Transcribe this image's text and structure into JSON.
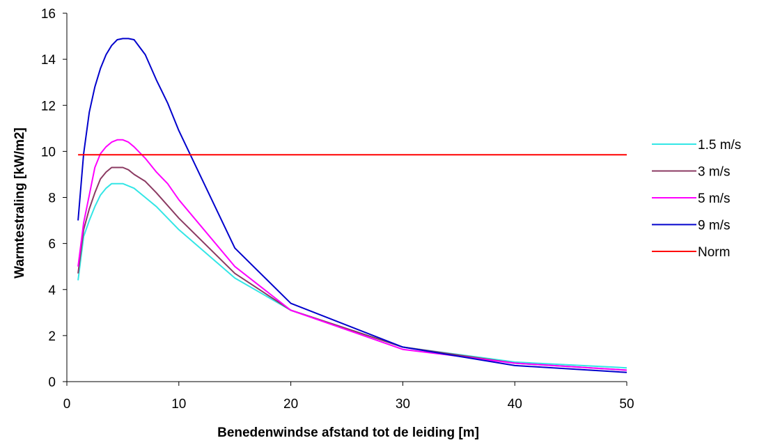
{
  "chart_data": {
    "type": "line",
    "title": "",
    "xlabel": "Benedenwindse afstand tot de leiding [m]",
    "ylabel": "Warmtestraling [kW/m2]",
    "xlim": [
      0,
      50
    ],
    "ylim": [
      0,
      16
    ],
    "x_ticks": [
      "0",
      "10",
      "20",
      "30",
      "40",
      "50"
    ],
    "y_ticks": [
      "0",
      "2",
      "4",
      "6",
      "8",
      "10",
      "12",
      "14",
      "16"
    ],
    "grid": false,
    "legend_position": "right",
    "series": [
      {
        "name": "1.5 m/s",
        "color": "#33e6e6",
        "points": [
          [
            1,
            4.4
          ],
          [
            1.5,
            6.3
          ],
          [
            2,
            7.0
          ],
          [
            2.5,
            7.6
          ],
          [
            3,
            8.1
          ],
          [
            3.5,
            8.4
          ],
          [
            4,
            8.6
          ],
          [
            5,
            8.6
          ],
          [
            6,
            8.4
          ],
          [
            7,
            8.0
          ],
          [
            8,
            7.6
          ],
          [
            10,
            6.6
          ],
          [
            15,
            4.5
          ],
          [
            20,
            3.1
          ],
          [
            30,
            1.5
          ],
          [
            40,
            0.85
          ],
          [
            50,
            0.6
          ]
        ]
      },
      {
        "name": "3 m/s",
        "color": "#8b3a62",
        "points": [
          [
            1,
            4.7
          ],
          [
            1.5,
            6.6
          ],
          [
            2,
            7.5
          ],
          [
            2.5,
            8.2
          ],
          [
            3,
            8.8
          ],
          [
            3.5,
            9.1
          ],
          [
            4,
            9.3
          ],
          [
            5,
            9.3
          ],
          [
            5.5,
            9.2
          ],
          [
            6,
            9.0
          ],
          [
            7,
            8.7
          ],
          [
            8,
            8.2
          ],
          [
            10,
            7.1
          ],
          [
            15,
            4.7
          ],
          [
            20,
            3.1
          ],
          [
            30,
            1.5
          ],
          [
            40,
            0.8
          ],
          [
            50,
            0.5
          ]
        ]
      },
      {
        "name": "5 m/s",
        "color": "#ff00ff",
        "points": [
          [
            1,
            5.0
          ],
          [
            1.5,
            6.9
          ],
          [
            2,
            8.1
          ],
          [
            2.5,
            9.3
          ],
          [
            3,
            9.9
          ],
          [
            3.5,
            10.2
          ],
          [
            4,
            10.4
          ],
          [
            4.5,
            10.5
          ],
          [
            5,
            10.5
          ],
          [
            5.5,
            10.4
          ],
          [
            6,
            10.2
          ],
          [
            7,
            9.7
          ],
          [
            8,
            9.1
          ],
          [
            9,
            8.6
          ],
          [
            10,
            7.9
          ],
          [
            15,
            5.0
          ],
          [
            20,
            3.1
          ],
          [
            30,
            1.4
          ],
          [
            40,
            0.8
          ],
          [
            50,
            0.5
          ]
        ]
      },
      {
        "name": "9 m/s",
        "color": "#0000cc",
        "points": [
          [
            1,
            7.0
          ],
          [
            1.5,
            9.9
          ],
          [
            2,
            11.7
          ],
          [
            2.5,
            12.8
          ],
          [
            3,
            13.6
          ],
          [
            3.5,
            14.2
          ],
          [
            4,
            14.6
          ],
          [
            4.5,
            14.85
          ],
          [
            5,
            14.9
          ],
          [
            5.5,
            14.9
          ],
          [
            6,
            14.85
          ],
          [
            7,
            14.2
          ],
          [
            8,
            13.1
          ],
          [
            9,
            12.1
          ],
          [
            10,
            10.9
          ],
          [
            15,
            5.8
          ],
          [
            20,
            3.4
          ],
          [
            30,
            1.5
          ],
          [
            40,
            0.7
          ],
          [
            50,
            0.4
          ]
        ]
      },
      {
        "name": "Norm",
        "color": "#ff0000",
        "points": [
          [
            1,
            9.85
          ],
          [
            50,
            9.85
          ]
        ]
      }
    ]
  }
}
